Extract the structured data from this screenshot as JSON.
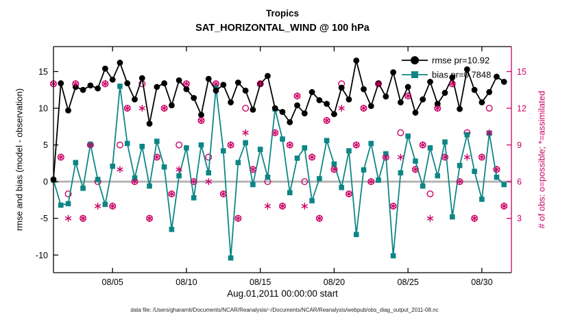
{
  "figure": {
    "title": "Tropics",
    "subtitle": "SAT_HORIZONTAL_WIND @ 100 hPa",
    "caption": "data file: /Users/gharamti/Documents/NCAR/Reanalysis/~/Documents/NCAR/Reanalysis/webpub/obs_diag_output_2011-08.nc"
  },
  "chart_data": {
    "type": "line",
    "title": "Tropics",
    "subtitle": "SAT_HORIZONTAL_WIND @ 100 hPa",
    "xlabel": "Aug.01,2011 00:00:00 start",
    "ylabel_left": "rmse and bias (model - observation)",
    "ylabel_right": "# of obs: o=possible; *=assimilated",
    "x_tick_labels": [
      "08/05",
      "08/10",
      "08/15",
      "08/20",
      "08/25",
      "08/30"
    ],
    "x_tick_days": [
      4,
      9,
      14,
      19,
      24,
      29
    ],
    "x_range_days": [
      0,
      31
    ],
    "ylim_left": [
      -12.4,
      18.4
    ],
    "yticks_left": [
      -10,
      -5,
      0,
      5,
      10,
      15
    ],
    "yticks_right": [
      3,
      6,
      9,
      12,
      15
    ],
    "right_axis_map": "left_value = (right_value - 6) * 5 / 3",
    "zero_line": 0,
    "grid": "off",
    "legend_position": "top-right-inside",
    "legend": [
      {
        "label": "rmse pr=10.92",
        "series": "rmse",
        "marker": "filled-circle"
      },
      {
        "label": "bias pr=0.7848",
        "series": "bias",
        "marker": "filled-square"
      }
    ],
    "colors": {
      "rmse": "#000000",
      "bias": "#0d8585",
      "obs": "#cc0066",
      "zero_line": "#b3b3b3",
      "axis": "#000000",
      "right_axis": "#cc0066"
    },
    "x_days": [
      0,
      0.5,
      1,
      1.5,
      2,
      2.5,
      3,
      3.5,
      4,
      4.5,
      5,
      5.5,
      6,
      6.5,
      7,
      7.5,
      8,
      8.5,
      9,
      9.5,
      10,
      10.5,
      11,
      11.5,
      12,
      12.5,
      13,
      13.5,
      14,
      14.5,
      15,
      15.5,
      16,
      16.5,
      17,
      17.5,
      18,
      18.5,
      19,
      19.5,
      20,
      20.5,
      21,
      21.5,
      22,
      22.5,
      23,
      23.5,
      24,
      24.5,
      25,
      25.5,
      26,
      26.5,
      27,
      27.5,
      28,
      28.5,
      29,
      29.5,
      30,
      30.5
    ],
    "series": [
      {
        "name": "rmse",
        "axis": "left",
        "marker": "filled-circle",
        "color_key": "rmse",
        "values": [
          0.3,
          13.4,
          9.7,
          12.9,
          12.5,
          13.1,
          12.7,
          15.4,
          13.9,
          16.2,
          13.4,
          11.2,
          14.1,
          7.9,
          12.9,
          13.4,
          10.4,
          13.8,
          12.6,
          11.4,
          9.1,
          14.0,
          12.4,
          13.2,
          10.8,
          13.5,
          12.4,
          9.8,
          13.3,
          14.4,
          10.0,
          9.5,
          8.1,
          10.4,
          9.3,
          12.2,
          11.1,
          10.6,
          9.2,
          12.8,
          11.2,
          16.5,
          12.6,
          10.3,
          13.4,
          11.6,
          14.9,
          10.8,
          12.9,
          9.4,
          11.2,
          13.6,
          10.6,
          12.1,
          14.2,
          9.9,
          15.3,
          12.5,
          10.8,
          12.2,
          14.3,
          13.6
        ]
      },
      {
        "name": "bias",
        "axis": "left",
        "marker": "filled-square",
        "color_key": "bias",
        "values": [
          0.2,
          -3.2,
          -3.0,
          2.6,
          -0.9,
          5.1,
          0.3,
          -3.1,
          2.1,
          13.0,
          5.2,
          0.5,
          4.8,
          -0.6,
          5.5,
          2.0,
          -6.5,
          0.8,
          4.6,
          -2.2,
          5.0,
          1.2,
          12.8,
          4.2,
          -10.4,
          2.6,
          5.3,
          -0.4,
          4.4,
          0.6,
          9.9,
          5.8,
          -1.5,
          3.2,
          4.6,
          -2.6,
          0.4,
          5.6,
          2.4,
          -0.8,
          4.2,
          -7.2,
          1.6,
          5.2,
          0.2,
          3.8,
          -10.1,
          1.2,
          6.2,
          2.8,
          -0.6,
          4.6,
          0.8,
          5.4,
          -4.8,
          2.2,
          6.4,
          1.4,
          -2.4,
          6.6,
          0.6,
          -0.4
        ]
      },
      {
        "name": "possible_obs",
        "axis": "right",
        "marker": "open-circle",
        "color_key": "obs",
        "values": [
          14,
          8,
          5,
          14,
          3,
          9,
          6,
          14,
          4,
          9,
          12,
          6,
          14,
          3,
          8,
          12,
          5,
          9,
          14,
          6,
          11,
          8,
          14,
          5,
          9,
          3,
          12,
          7,
          14,
          6,
          10,
          4,
          9,
          13,
          6,
          8,
          3,
          11,
          7,
          14,
          5,
          9,
          12,
          6,
          14,
          8,
          4,
          10,
          13,
          7,
          9,
          5,
          12,
          8,
          14,
          6,
          10,
          3,
          8,
          12,
          7,
          4
        ]
      },
      {
        "name": "assimilated_obs",
        "axis": "right",
        "marker": "asterisk",
        "color_key": "obs",
        "values": [
          14,
          8,
          3,
          14,
          3,
          9,
          4,
          14,
          4,
          7,
          12,
          6,
          12,
          3,
          8,
          12,
          5,
          7,
          14,
          6,
          11,
          6,
          14,
          5,
          9,
          3,
          10,
          7,
          14,
          4,
          10,
          4,
          9,
          13,
          4,
          8,
          3,
          11,
          7,
          12,
          5,
          9,
          12,
          6,
          14,
          8,
          4,
          8,
          13,
          7,
          9,
          3,
          12,
          8,
          14,
          6,
          8,
          3,
          8,
          10,
          7,
          4
        ]
      }
    ]
  }
}
